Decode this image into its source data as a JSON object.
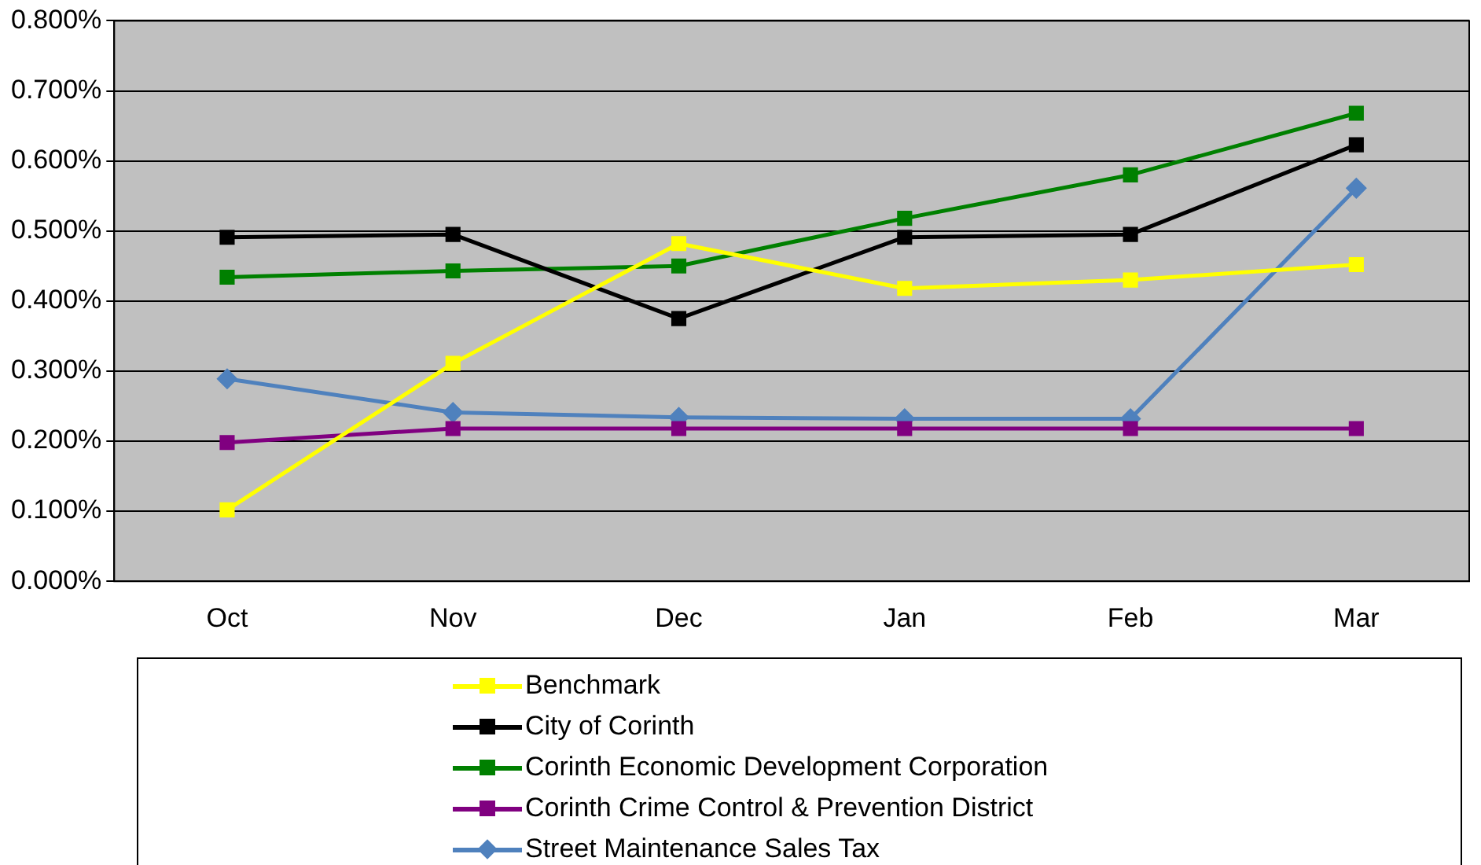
{
  "chart_data": {
    "type": "line",
    "categories": [
      "Oct",
      "Nov",
      "Dec",
      "Jan",
      "Feb",
      "Mar"
    ],
    "series": [
      {
        "name": "Benchmark",
        "color": "#ffff00",
        "marker": "square",
        "values": [
          0.102,
          0.311,
          0.482,
          0.418,
          0.43,
          0.452
        ]
      },
      {
        "name": "City of Corinth",
        "color": "#000000",
        "marker": "square",
        "values": [
          0.491,
          0.495,
          0.375,
          0.491,
          0.495,
          0.623
        ]
      },
      {
        "name": "Corinth Economic Development Corporation",
        "color": "#008000",
        "marker": "square",
        "values": [
          0.434,
          0.443,
          0.45,
          0.518,
          0.58,
          0.668
        ]
      },
      {
        "name": "Corinth Crime Control & Prevention District",
        "color": "#800080",
        "marker": "square",
        "values": [
          0.198,
          0.218,
          0.218,
          0.218,
          0.218,
          0.218
        ]
      },
      {
        "name": "Street Maintenance Sales Tax",
        "color": "#4f81bd",
        "marker": "diamond",
        "values": [
          0.289,
          0.241,
          0.234,
          0.232,
          0.232,
          0.561
        ]
      }
    ],
    "ylim": [
      0,
      0.8
    ],
    "yticks": [
      {
        "value": 0,
        "label": "0.000%"
      },
      {
        "value": 0.1,
        "label": "0.100%"
      },
      {
        "value": 0.2,
        "label": "0.200%"
      },
      {
        "value": 0.3,
        "label": "0.300%"
      },
      {
        "value": 0.4,
        "label": "0.400%"
      },
      {
        "value": 0.5,
        "label": "0.500%"
      },
      {
        "value": 0.6,
        "label": "0.600%"
      },
      {
        "value": 0.7,
        "label": "0.700%"
      },
      {
        "value": 0.8,
        "label": "0.800%"
      }
    ],
    "grid": "y",
    "legend": "bottom",
    "line_style": "solid"
  }
}
